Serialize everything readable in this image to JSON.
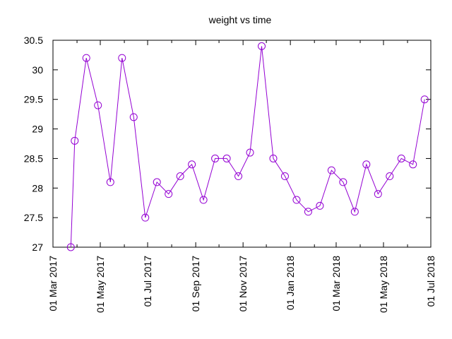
{
  "chart_data": {
    "type": "line",
    "title": "weight vs time",
    "xlabel": "",
    "ylabel": "",
    "xlim": [
      "2017-03-01",
      "2018-07-01"
    ],
    "ylim": [
      27,
      30.5
    ],
    "grid": false,
    "legend": "none",
    "y_ticks": [
      {
        "value": 27,
        "label": "27"
      },
      {
        "value": 27.5,
        "label": "27.5"
      },
      {
        "value": 28,
        "label": "28"
      },
      {
        "value": 28.5,
        "label": "28.5"
      },
      {
        "value": 29,
        "label": "29"
      },
      {
        "value": 29.5,
        "label": "29.5"
      },
      {
        "value": 30,
        "label": "30"
      },
      {
        "value": 30.5,
        "label": "30.5"
      }
    ],
    "x_ticks": [
      {
        "value": "2017-03-01",
        "label": "01 Mar 2017"
      },
      {
        "value": "2017-05-01",
        "label": "01 May 2017"
      },
      {
        "value": "2017-07-01",
        "label": "01 Jul 2017"
      },
      {
        "value": "2017-09-01",
        "label": "01 Sep 2017"
      },
      {
        "value": "2017-11-01",
        "label": "01 Nov 2017"
      },
      {
        "value": "2018-01-01",
        "label": "01 Jan 2018"
      },
      {
        "value": "2018-03-01",
        "label": "01 Mar 2018"
      },
      {
        "value": "2018-05-01",
        "label": "01 May 2018"
      },
      {
        "value": "2018-07-01",
        "label": "01 Jul 2018"
      }
    ],
    "series": [
      {
        "color": "#9400d3",
        "marker": "circle",
        "points": [
          {
            "x": "2017-03-24",
            "y": 27.0
          },
          {
            "x": "2017-03-29",
            "y": 28.8
          },
          {
            "x": "2017-04-13",
            "y": 30.2
          },
          {
            "x": "2017-04-28",
            "y": 29.4
          },
          {
            "x": "2017-05-14",
            "y": 28.1
          },
          {
            "x": "2017-05-29",
            "y": 30.2
          },
          {
            "x": "2017-06-13",
            "y": 29.2
          },
          {
            "x": "2017-06-28",
            "y": 27.5
          },
          {
            "x": "2017-07-13",
            "y": 28.1
          },
          {
            "x": "2017-07-28",
            "y": 27.9
          },
          {
            "x": "2017-08-12",
            "y": 28.2
          },
          {
            "x": "2017-08-27",
            "y": 28.4
          },
          {
            "x": "2017-09-11",
            "y": 27.8
          },
          {
            "x": "2017-09-26",
            "y": 28.5
          },
          {
            "x": "2017-10-11",
            "y": 28.5
          },
          {
            "x": "2017-10-26",
            "y": 28.2
          },
          {
            "x": "2017-11-10",
            "y": 28.6
          },
          {
            "x": "2017-11-25",
            "y": 30.4
          },
          {
            "x": "2017-12-10",
            "y": 28.5
          },
          {
            "x": "2017-12-25",
            "y": 28.2
          },
          {
            "x": "2018-01-09",
            "y": 27.8
          },
          {
            "x": "2018-01-24",
            "y": 27.6
          },
          {
            "x": "2018-02-08",
            "y": 27.7
          },
          {
            "x": "2018-02-23",
            "y": 28.3
          },
          {
            "x": "2018-03-10",
            "y": 28.1
          },
          {
            "x": "2018-03-25",
            "y": 27.6
          },
          {
            "x": "2018-04-09",
            "y": 28.4
          },
          {
            "x": "2018-04-24",
            "y": 27.9
          },
          {
            "x": "2018-05-09",
            "y": 28.2
          },
          {
            "x": "2018-05-24",
            "y": 28.5
          },
          {
            "x": "2018-06-08",
            "y": 28.4
          },
          {
            "x": "2018-06-23",
            "y": 29.5
          }
        ]
      }
    ]
  }
}
